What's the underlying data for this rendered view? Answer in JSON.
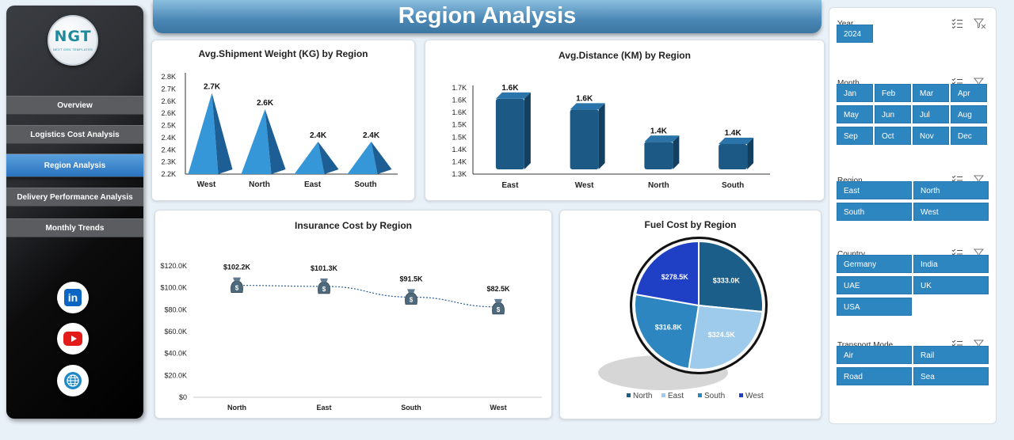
{
  "title": "Region Analysis",
  "logo": {
    "text": "NGT",
    "subtitle": "NEXT GEN TEMPLATES"
  },
  "nav": [
    {
      "label": "Overview",
      "active": false
    },
    {
      "label": "Logistics Cost Analysis",
      "active": false
    },
    {
      "label": "Region Analysis",
      "active": true
    },
    {
      "label": "Delivery Performance Analysis",
      "active": false
    },
    {
      "label": "Monthly Trends",
      "active": false
    }
  ],
  "social": [
    "linkedin-icon",
    "youtube-icon",
    "website-globe-icon"
  ],
  "colors": {
    "accent": "#2e86c1",
    "dark_blue": "#1c5a85",
    "bar_blue": "#1c5a85",
    "pyramid_blue": "#2f8fd3",
    "slice_north": "#1c5e8a",
    "slice_east": "#9ecbeb",
    "slice_south": "#2e86c1",
    "slice_west": "#1f3fc4"
  },
  "chart_data": [
    {
      "id": "shipment-weight",
      "type": "bar",
      "title": "Avg.Shipment Weight (KG) by Region",
      "categories": [
        "West",
        "North",
        "East",
        "South"
      ],
      "values": [
        2.7,
        2.6,
        2.4,
        2.4
      ],
      "data_labels": [
        "2.7K",
        "2.6K",
        "2.4K",
        "2.4K"
      ],
      "yticks": [
        "2.2K",
        "2.3K",
        "2.4K",
        "2.4K",
        "2.5K",
        "2.6K",
        "2.6K",
        "2.7K",
        "2.8K"
      ],
      "ylim": [
        2.2,
        2.8
      ],
      "unit": "K"
    },
    {
      "id": "avg-distance",
      "type": "bar",
      "title": "Avg.Distance (KM) by Region",
      "categories": [
        "East",
        "West",
        "North",
        "South"
      ],
      "values": [
        1.62,
        1.57,
        1.42,
        1.41
      ],
      "data_labels": [
        "1.6K",
        "1.6K",
        "1.4K",
        "1.4K"
      ],
      "yticks": [
        "1.3K",
        "1.4K",
        "1.4K",
        "1.5K",
        "1.5K",
        "1.6K",
        "1.6K",
        "1.7K"
      ],
      "ylim": [
        1.3,
        1.7
      ],
      "unit": "K"
    },
    {
      "id": "insurance-cost",
      "type": "line",
      "title": "Insurance Cost by Region",
      "categories": [
        "North",
        "East",
        "South",
        "West"
      ],
      "values": [
        102.2,
        101.3,
        91.5,
        82.5
      ],
      "data_labels": [
        "$102.2K",
        "$101.3K",
        "$91.5K",
        "$82.5K"
      ],
      "yticks": [
        "$0",
        "$20.0K",
        "$40.0K",
        "$60.0K",
        "$80.0K",
        "$100.0K",
        "$120.0K"
      ],
      "ylim": [
        0,
        120
      ]
    },
    {
      "id": "fuel-cost",
      "type": "pie",
      "title": "Fuel Cost by Region",
      "categories": [
        "North",
        "East",
        "South",
        "West"
      ],
      "values": [
        333.0,
        324.5,
        316.8,
        278.5
      ],
      "data_labels": [
        "$333.0K",
        "$324.5K",
        "$316.8K",
        "$278.5K"
      ],
      "legend": [
        "North",
        "East",
        "South",
        "West"
      ]
    }
  ],
  "filters": [
    {
      "label": "Year",
      "options": [
        "2024"
      ]
    },
    {
      "label": "Month",
      "options": [
        "Jan",
        "Feb",
        "Mar",
        "Apr",
        "May",
        "Jun",
        "Jul",
        "Aug",
        "Sep",
        "Oct",
        "Nov",
        "Dec"
      ]
    },
    {
      "label": "Region",
      "options": [
        "East",
        "North",
        "South",
        "West"
      ]
    },
    {
      "label": "Country",
      "options": [
        "Germany",
        "India",
        "UAE",
        "UK",
        "USA"
      ]
    },
    {
      "label": "Transport Mode",
      "options": [
        "Air",
        "Rail",
        "Road",
        "Sea"
      ]
    }
  ]
}
